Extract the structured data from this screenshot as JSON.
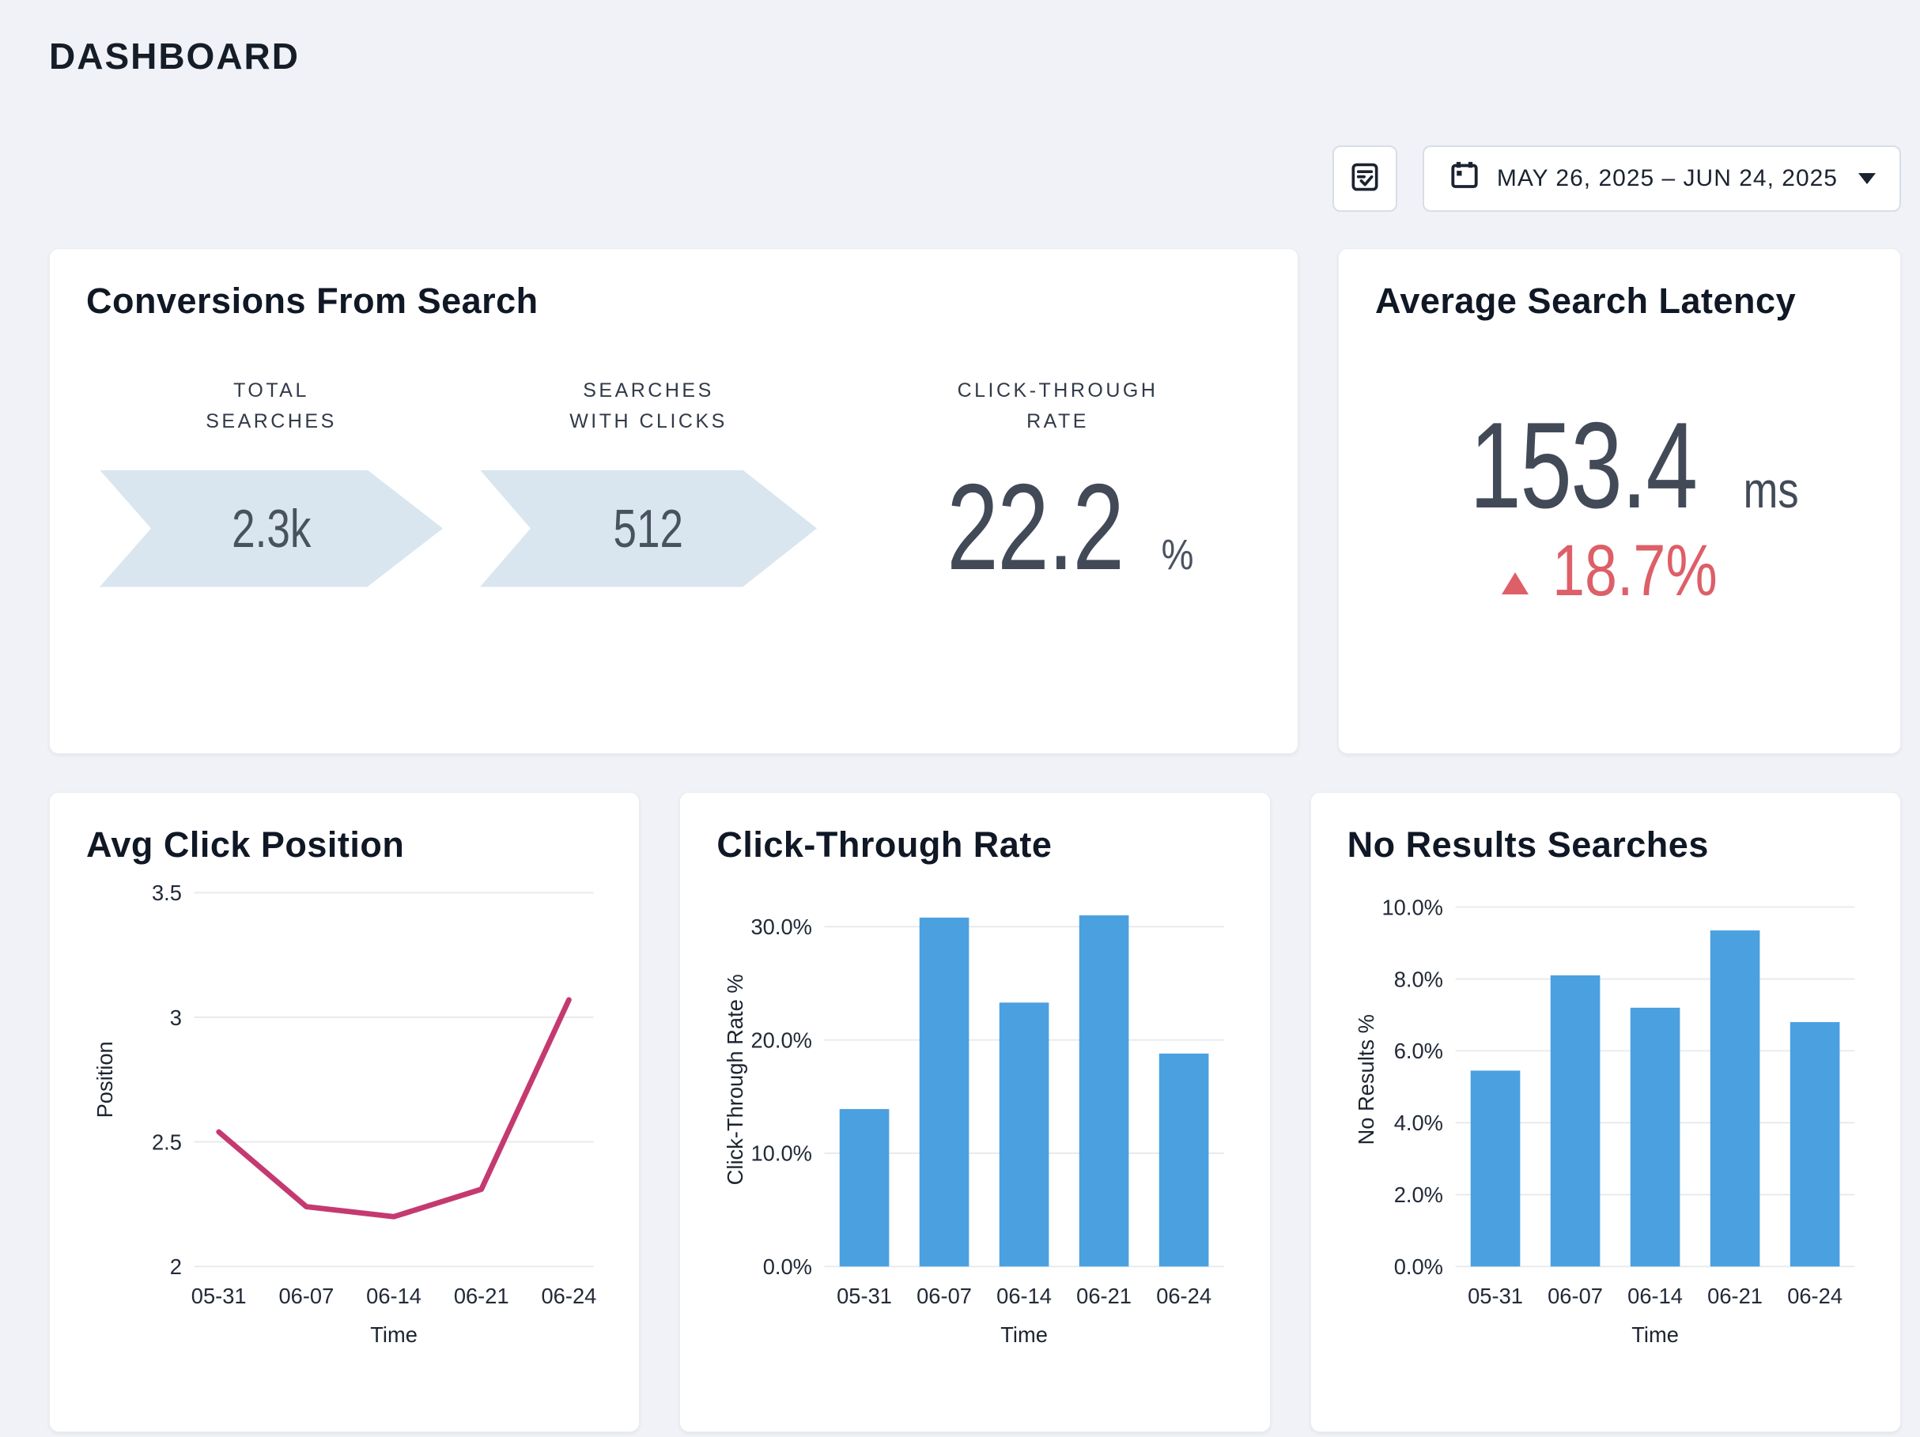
{
  "page": {
    "title": "DASHBOARD",
    "background": "#f0f2f7"
  },
  "toolbar": {
    "report_button": {
      "icon": "fact-check-icon"
    },
    "date_button": {
      "icon": "calendar-icon",
      "label": "MAY 26, 2025 – JUN 24, 2025",
      "caret_icon": "caret-down-icon"
    }
  },
  "conversions": {
    "title": "Conversions From Search",
    "chevron_color": "#d9e6ef",
    "stages": [
      {
        "label": "TOTAL\nSEARCHES",
        "value": "2.3k"
      },
      {
        "label": "SEARCHES\nWITH CLICKS",
        "value": "512"
      },
      {
        "label": "CLICK-THROUGH\nRATE",
        "value": "22.2",
        "unit": "%"
      }
    ]
  },
  "latency": {
    "title": "Average Search Latency",
    "value": "153.4",
    "unit": "ms",
    "change": {
      "value": "18.7%",
      "direction": "up",
      "color": "#dd5f68"
    }
  },
  "chart_data": [
    {
      "id": "avg_click_position",
      "type": "line",
      "title": "Avg Click Position",
      "x": [
        "05-31",
        "06-07",
        "06-14",
        "06-21",
        "06-24"
      ],
      "values": [
        2.54,
        2.24,
        2.2,
        2.31,
        3.07
      ],
      "xlabel": "Time",
      "ylabel": "Position",
      "ylim": [
        2,
        3.5
      ],
      "yticks": [
        2,
        2.5,
        3,
        3.5
      ],
      "tick_suffix": "",
      "grid": true,
      "legend": "none",
      "color": "#c43a70"
    },
    {
      "id": "click_through_rate",
      "type": "bar",
      "title": "Click-Through Rate",
      "x": [
        "05-31",
        "06-07",
        "06-14",
        "06-21",
        "06-24"
      ],
      "values": [
        13.9,
        30.8,
        23.3,
        31.0,
        18.8
      ],
      "xlabel": "Time",
      "ylabel": "Click-Through Rate %",
      "ylim": [
        0,
        33
      ],
      "yticks": [
        0,
        10,
        20,
        30
      ],
      "tick_suffix": "%",
      "tick_decimals": 1,
      "grid": true,
      "legend": "none",
      "color": "#4ba0e0"
    },
    {
      "id": "no_results_searches",
      "type": "bar",
      "title": "No Results Searches",
      "x": [
        "05-31",
        "06-07",
        "06-14",
        "06-21",
        "06-24"
      ],
      "values": [
        5.45,
        8.1,
        7.2,
        9.35,
        6.8
      ],
      "xlabel": "Time",
      "ylabel": "No Results %",
      "ylim": [
        0,
        10.4
      ],
      "yticks": [
        0,
        2,
        4,
        6,
        8,
        10
      ],
      "tick_suffix": "%",
      "tick_decimals": 1,
      "grid": true,
      "legend": "none",
      "color": "#4ba0e0"
    }
  ],
  "colors": {
    "bar_blue": "#4ba0e0",
    "line_pink": "#c43a70",
    "negative_red": "#dd5f68",
    "funnel_blue": "#d9e6ef",
    "gridline": "#e8eaee",
    "text_dark": "#141c28"
  }
}
